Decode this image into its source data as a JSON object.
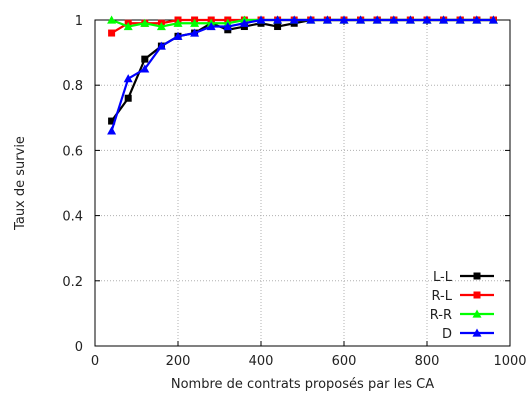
{
  "chart_data": {
    "type": "line",
    "xlabel": "Nombre de contrats proposés par les CA",
    "ylabel": "Taux de survie",
    "xlim": [
      0,
      1000
    ],
    "ylim": [
      0,
      1
    ],
    "xticks": [
      0,
      200,
      400,
      600,
      800,
      1000
    ],
    "yticks": [
      0,
      0.2,
      0.4,
      0.6,
      0.8,
      1
    ],
    "xtick_labels": [
      "0",
      "200",
      "400",
      "600",
      "800",
      "1000"
    ],
    "ytick_labels": [
      "0",
      "0.2",
      "0.4",
      "0.6",
      "0.8",
      "1"
    ],
    "grid": true,
    "legend_position": "bottom-right",
    "x": [
      40,
      80,
      120,
      160,
      200,
      240,
      280,
      320,
      360,
      400,
      440,
      480,
      520,
      560,
      600,
      640,
      680,
      720,
      760,
      800,
      840,
      880,
      920,
      960
    ],
    "series": [
      {
        "name": "L-L",
        "color": "#000000",
        "marker": "square",
        "values": [
          0.69,
          0.76,
          0.88,
          0.92,
          0.95,
          0.96,
          0.99,
          0.97,
          0.98,
          0.99,
          0.98,
          0.99,
          1,
          1,
          1,
          1,
          1,
          1,
          1,
          1,
          1,
          1,
          1,
          1
        ]
      },
      {
        "name": "R-L",
        "color": "#ff0000",
        "marker": "square",
        "values": [
          0.96,
          0.99,
          0.99,
          0.99,
          1,
          1,
          1,
          1,
          1,
          1,
          1,
          1,
          1,
          1,
          1,
          1,
          1,
          1,
          1,
          1,
          1,
          1,
          1,
          1
        ]
      },
      {
        "name": "R-R",
        "color": "#00ff00",
        "marker": "triangle",
        "values": [
          1,
          0.98,
          0.99,
          0.98,
          0.99,
          0.99,
          0.99,
          0.99,
          1,
          1,
          1,
          1,
          1,
          1,
          1,
          1,
          1,
          1,
          1,
          1,
          1,
          1,
          1,
          1
        ]
      },
      {
        "name": "D",
        "color": "#0000ff",
        "marker": "triangle",
        "values": [
          0.66,
          0.82,
          0.85,
          0.92,
          0.95,
          0.96,
          0.98,
          0.98,
          0.99,
          1,
          1,
          1,
          1,
          1,
          1,
          1,
          1,
          1,
          1,
          1,
          1,
          1,
          1,
          1
        ]
      }
    ]
  }
}
